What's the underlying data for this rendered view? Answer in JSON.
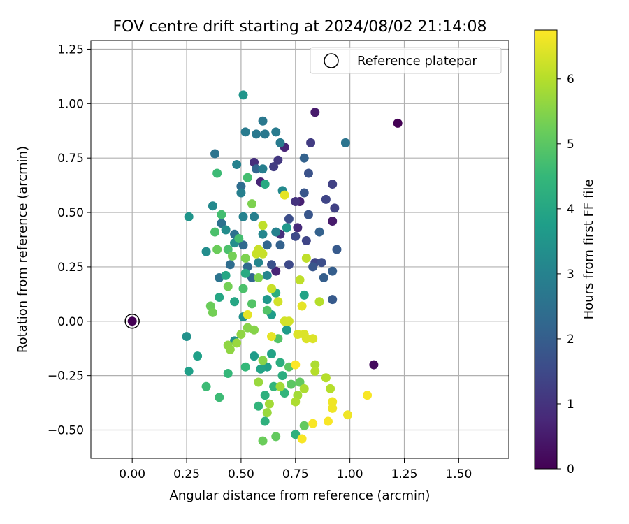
{
  "chart_data": {
    "type": "scatter",
    "title": "FOV centre drift starting at 2024/08/02 21:14:08",
    "xlabel": "Angular distance from reference (arcmin)",
    "ylabel": "Rotation from reference (arcmin)",
    "xlim": [
      -0.19,
      1.73
    ],
    "ylim": [
      -0.63,
      1.29
    ],
    "xticks": [
      "0.00",
      "0.25",
      "0.50",
      "0.75",
      "1.00",
      "1.25",
      "1.50"
    ],
    "yticks": [
      "−0.50",
      "−0.25",
      "0.00",
      "0.25",
      "0.50",
      "0.75",
      "1.00",
      "1.25"
    ],
    "grid": true,
    "legend": {
      "placement": "top-right",
      "entries": [
        "Reference platepar"
      ]
    },
    "reference_point": {
      "x": 0.0,
      "y": 0.0,
      "c": 0.0
    },
    "colorbar": {
      "label": "Hours from first FF file",
      "range": [
        0,
        6.75
      ],
      "ticks": [
        "0",
        "1",
        "2",
        "3",
        "4",
        "5",
        "6"
      ],
      "colormap": "viridis"
    },
    "colormap_stops": [
      "#440154",
      "#482878",
      "#3e4a89",
      "#31688e",
      "#26828e",
      "#1f9e89",
      "#35b779",
      "#6ece58",
      "#b5de2b",
      "#fde725"
    ],
    "points": [
      [
        1.22,
        0.91,
        0.0
      ],
      [
        1.11,
        -0.2,
        0.2
      ],
      [
        0.84,
        0.96,
        0.5
      ],
      [
        0.92,
        0.46,
        0.5
      ],
      [
        0.77,
        0.55,
        0.6
      ],
      [
        0.76,
        0.43,
        0.8
      ],
      [
        0.7,
        0.8,
        0.7
      ],
      [
        0.59,
        0.64,
        0.7
      ],
      [
        0.66,
        0.23,
        0.7
      ],
      [
        0.56,
        0.73,
        0.9
      ],
      [
        0.68,
        0.4,
        0.9
      ],
      [
        0.75,
        0.55,
        1.0
      ],
      [
        0.67,
        0.74,
        1.1
      ],
      [
        0.65,
        0.71,
        1.2
      ],
      [
        0.82,
        0.82,
        1.2
      ],
      [
        0.92,
        0.63,
        1.3
      ],
      [
        0.93,
        0.52,
        1.3
      ],
      [
        0.89,
        0.56,
        1.4
      ],
      [
        0.8,
        0.37,
        1.4
      ],
      [
        0.84,
        0.27,
        1.4
      ],
      [
        0.72,
        0.26,
        1.5
      ],
      [
        0.75,
        0.39,
        1.5
      ],
      [
        0.72,
        0.47,
        1.6
      ],
      [
        0.87,
        0.27,
        1.6
      ],
      [
        0.64,
        0.26,
        1.7
      ],
      [
        0.81,
        0.68,
        1.7
      ],
      [
        0.79,
        0.59,
        1.8
      ],
      [
        0.81,
        0.49,
        1.8
      ],
      [
        0.83,
        0.25,
        1.8
      ],
      [
        0.92,
        0.1,
        1.9
      ],
      [
        0.94,
        0.33,
        1.9
      ],
      [
        0.92,
        0.23,
        2.0
      ],
      [
        0.88,
        0.2,
        2.0
      ],
      [
        0.86,
        0.41,
        2.1
      ],
      [
        0.79,
        0.75,
        2.1
      ],
      [
        0.68,
        0.35,
        2.1
      ],
      [
        0.62,
        0.35,
        2.2
      ],
      [
        0.57,
        0.7,
        2.2
      ],
      [
        0.55,
        0.2,
        2.2
      ],
      [
        0.53,
        0.25,
        2.3
      ],
      [
        0.51,
        0.35,
        2.3
      ],
      [
        0.5,
        0.62,
        2.4
      ],
      [
        0.45,
        0.26,
        2.4
      ],
      [
        0.47,
        0.4,
        2.5
      ],
      [
        0.41,
        0.45,
        2.5
      ],
      [
        0.4,
        0.2,
        2.6
      ],
      [
        0.38,
        0.77,
        2.6
      ],
      [
        0.98,
        0.82,
        2.6
      ],
      [
        0.6,
        0.92,
        2.7
      ],
      [
        0.61,
        0.86,
        2.7
      ],
      [
        0.57,
        0.86,
        2.7
      ],
      [
        0.52,
        0.87,
        2.8
      ],
      [
        0.66,
        0.87,
        2.8
      ],
      [
        0.68,
        0.82,
        2.8
      ],
      [
        0.6,
        0.7,
        2.9
      ],
      [
        0.56,
        0.48,
        2.9
      ],
      [
        0.5,
        0.59,
        2.9
      ],
      [
        0.48,
        0.72,
        3.0
      ],
      [
        0.51,
        0.48,
        3.0
      ],
      [
        0.66,
        0.41,
        3.0
      ],
      [
        0.6,
        0.4,
        3.1
      ],
      [
        0.58,
        0.27,
        3.1
      ],
      [
        0.62,
        0.21,
        3.1
      ],
      [
        0.69,
        0.6,
        3.2
      ],
      [
        0.37,
        0.53,
        3.2
      ],
      [
        0.34,
        0.32,
        3.3
      ],
      [
        0.47,
        0.36,
        3.3
      ],
      [
        0.43,
        0.42,
        3.3
      ],
      [
        0.51,
        0.02,
        3.4
      ],
      [
        0.47,
        -0.09,
        3.4
      ],
      [
        0.25,
        -0.07,
        3.4
      ],
      [
        0.26,
        0.48,
        3.5
      ],
      [
        0.51,
        1.04,
        3.5
      ],
      [
        0.71,
        0.43,
        3.6
      ],
      [
        0.62,
        0.1,
        3.6
      ],
      [
        0.64,
        0.03,
        3.7
      ],
      [
        0.71,
        -0.04,
        3.7
      ],
      [
        0.56,
        -0.16,
        3.7
      ],
      [
        0.62,
        -0.21,
        3.8
      ],
      [
        0.3,
        -0.16,
        3.8
      ],
      [
        0.26,
        -0.23,
        3.8
      ],
      [
        0.79,
        0.12,
        3.9
      ],
      [
        0.64,
        -0.15,
        3.9
      ],
      [
        0.59,
        -0.22,
        3.9
      ],
      [
        0.43,
        0.21,
        4.0
      ],
      [
        0.4,
        0.11,
        4.0
      ],
      [
        0.47,
        0.09,
        4.0
      ],
      [
        0.52,
        0.22,
        4.1
      ],
      [
        0.61,
        0.63,
        4.1
      ],
      [
        0.66,
        0.13,
        4.2
      ],
      [
        0.68,
        -0.19,
        4.2
      ],
      [
        0.69,
        -0.25,
        4.2
      ],
      [
        0.61,
        -0.34,
        4.3
      ],
      [
        0.61,
        -0.46,
        4.3
      ],
      [
        0.75,
        -0.52,
        4.3
      ],
      [
        0.65,
        -0.3,
        4.4
      ],
      [
        0.7,
        -0.33,
        4.4
      ],
      [
        0.58,
        -0.39,
        4.4
      ],
      [
        0.52,
        -0.21,
        4.5
      ],
      [
        0.44,
        -0.24,
        4.5
      ],
      [
        0.4,
        -0.35,
        4.6
      ],
      [
        0.34,
        -0.3,
        4.6
      ],
      [
        0.39,
        0.68,
        4.6
      ],
      [
        0.53,
        0.66,
        4.7
      ],
      [
        0.49,
        0.38,
        4.7
      ],
      [
        0.41,
        0.49,
        4.7
      ],
      [
        0.38,
        0.41,
        4.8
      ],
      [
        0.44,
        0.33,
        4.8
      ],
      [
        0.51,
        0.15,
        4.8
      ],
      [
        0.55,
        0.08,
        4.9
      ],
      [
        0.62,
        0.05,
        4.9
      ],
      [
        0.67,
        -0.08,
        4.9
      ],
      [
        0.72,
        -0.21,
        5.0
      ],
      [
        0.73,
        -0.29,
        5.0
      ],
      [
        0.77,
        -0.28,
        5.1
      ],
      [
        0.79,
        -0.48,
        5.1
      ],
      [
        0.66,
        -0.53,
        5.1
      ],
      [
        0.6,
        -0.55,
        5.2
      ],
      [
        0.39,
        0.33,
        5.2
      ],
      [
        0.36,
        0.07,
        5.2
      ],
      [
        0.37,
        0.04,
        5.3
      ],
      [
        0.44,
        0.16,
        5.3
      ],
      [
        0.46,
        0.3,
        5.3
      ],
      [
        0.52,
        0.29,
        5.4
      ],
      [
        0.55,
        0.54,
        5.4
      ],
      [
        0.58,
        0.2,
        5.4
      ],
      [
        0.6,
        -0.18,
        5.5
      ],
      [
        0.56,
        -0.04,
        5.5
      ],
      [
        0.53,
        -0.03,
        5.5
      ],
      [
        0.5,
        -0.06,
        5.6
      ],
      [
        0.44,
        -0.11,
        5.6
      ],
      [
        0.45,
        -0.13,
        5.6
      ],
      [
        0.48,
        -0.1,
        5.7
      ],
      [
        0.58,
        -0.28,
        5.7
      ],
      [
        0.62,
        -0.42,
        5.7
      ],
      [
        0.63,
        -0.38,
        5.8
      ],
      [
        0.68,
        -0.3,
        5.8
      ],
      [
        0.76,
        -0.34,
        5.8
      ],
      [
        0.75,
        -0.37,
        5.9
      ],
      [
        0.79,
        -0.31,
        5.9
      ],
      [
        0.84,
        -0.2,
        5.9
      ],
      [
        0.84,
        -0.23,
        6.0
      ],
      [
        0.89,
        -0.26,
        6.0
      ],
      [
        0.91,
        -0.31,
        6.0
      ],
      [
        0.86,
        0.09,
        6.0
      ],
      [
        0.8,
        0.29,
        6.1
      ],
      [
        0.77,
        0.19,
        6.1
      ],
      [
        0.6,
        0.44,
        6.1
      ],
      [
        0.58,
        0.33,
        6.2
      ],
      [
        0.57,
        0.31,
        6.2
      ],
      [
        0.6,
        0.31,
        6.2
      ],
      [
        0.64,
        0.15,
        6.2
      ],
      [
        0.67,
        0.09,
        6.3
      ],
      [
        0.7,
        0.0,
        6.3
      ],
      [
        0.72,
        0.0,
        6.3
      ],
      [
        0.76,
        -0.06,
        6.4
      ],
      [
        0.79,
        -0.06,
        6.4
      ],
      [
        0.83,
        -0.08,
        6.4
      ],
      [
        0.8,
        -0.08,
        6.4
      ],
      [
        0.78,
        0.07,
        6.5
      ],
      [
        0.7,
        0.58,
        6.5
      ],
      [
        0.53,
        0.03,
        6.5
      ],
      [
        0.64,
        -0.07,
        6.5
      ],
      [
        0.92,
        -0.37,
        6.6
      ],
      [
        0.92,
        -0.4,
        6.6
      ],
      [
        0.99,
        -0.43,
        6.6
      ],
      [
        0.9,
        -0.46,
        6.7
      ],
      [
        0.83,
        -0.47,
        6.7
      ],
      [
        1.08,
        -0.34,
        6.7
      ],
      [
        0.78,
        -0.54,
        6.7
      ],
      [
        0.75,
        -0.2,
        6.8
      ]
    ]
  }
}
